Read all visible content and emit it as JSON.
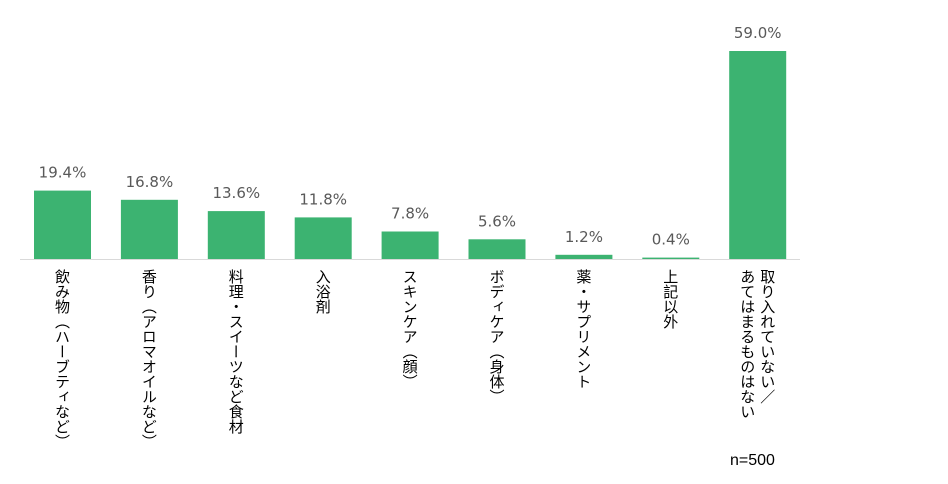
{
  "chart_data": {
    "type": "bar",
    "categories": [
      "飲み物（ハーブティなど）",
      "香り（アロマオイルなど）",
      "料理・スイーツなど食材",
      "入浴剤",
      "スキンケア（顔）",
      "ボディケア（身体）",
      "薬・サプリメント",
      "上記以外",
      "取り入れていない／あてはまるものはない"
    ],
    "values": [
      19.4,
      16.8,
      13.6,
      11.8,
      7.8,
      5.6,
      1.2,
      0.4,
      59.0
    ],
    "data_labels": [
      "19.4%",
      "16.8%",
      "13.6%",
      "11.8%",
      "7.8%",
      "5.6%",
      "1.2%",
      "0.4%",
      "59.0%"
    ],
    "ylim": [
      0,
      70
    ],
    "grid": false,
    "bar_color": "#3cb371",
    "label_color": "#595959"
  },
  "note": "n=500"
}
